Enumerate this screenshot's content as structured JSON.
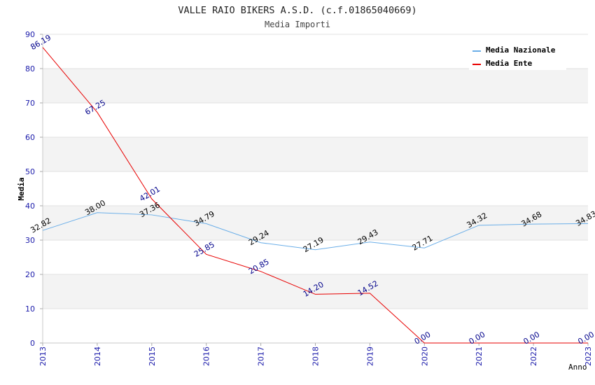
{
  "chart_data": {
    "type": "line",
    "title": "VALLE RAIO BIKERS A.S.D. (c.f.01865040669)",
    "subtitle": "Media Importi",
    "xlabel": "Anno",
    "ylabel": "Media",
    "ylim": [
      0,
      90
    ],
    "yticks": [
      "0",
      "10",
      "20",
      "30",
      "40",
      "50",
      "60",
      "70",
      "80",
      "90"
    ],
    "categories": [
      "2013",
      "2014",
      "2015",
      "2016",
      "2017",
      "2018",
      "2019",
      "2020",
      "2021",
      "2022",
      "2023"
    ],
    "grid": true,
    "legend_position": "top-right",
    "series": [
      {
        "name": "Media Nazionale",
        "color": "#6aaee8",
        "label_color": "#000000",
        "values": [
          32.82,
          38.0,
          37.36,
          34.79,
          29.24,
          27.19,
          29.43,
          27.71,
          34.32,
          34.68,
          34.83
        ],
        "labels": [
          "32.82",
          "38.00",
          "37.36",
          "34.79",
          "29.24",
          "27.19",
          "29.43",
          "27.71",
          "34.32",
          "34.68",
          "34.83"
        ]
      },
      {
        "name": "Media Ente",
        "color": "#e80000",
        "label_color": "#00008b",
        "values": [
          86.19,
          67.25,
          42.01,
          25.85,
          20.85,
          14.2,
          14.52,
          0.0,
          0.0,
          0.0,
          0.0
        ],
        "labels": [
          "86.19",
          "67.25",
          "42.01",
          "25.85",
          "20.85",
          "14.20",
          "14.52",
          "0.00",
          "0.00",
          "0.00",
          "0.00"
        ]
      }
    ]
  }
}
